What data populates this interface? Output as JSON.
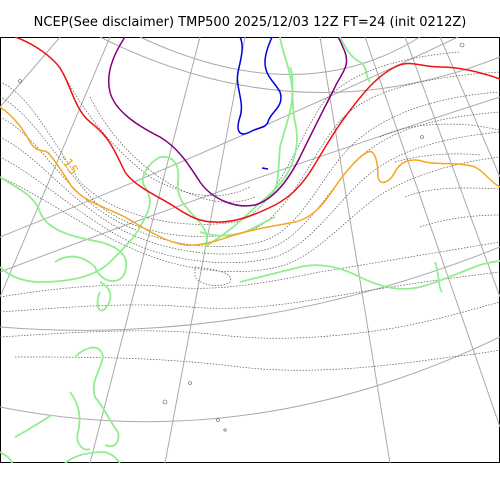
{
  "title": "NCEP(See disclaimer) TMP500 2025/12/03 12Z FT=24 (init 0212Z)",
  "map": {
    "field": "TMP500",
    "contour_labels": [
      {
        "text": "-15",
        "color": "#f5a623"
      }
    ],
    "colors": {
      "coastline": "#90ee90",
      "graticule": "#aaaaaa",
      "isotherm_minor": "#555555",
      "isotherm_red": "#ee1111",
      "isotherm_orange": "#f5a623",
      "isotherm_purple": "#800080",
      "isotherm_blue": "#0000dd"
    }
  }
}
